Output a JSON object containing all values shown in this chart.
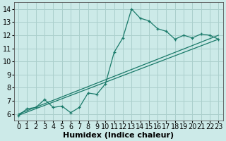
{
  "xlabel": "Humidex (Indice chaleur)",
  "bg_color": "#cceae8",
  "grid_color": "#aacfcc",
  "line_color": "#1a7a6a",
  "xlim": [
    -0.5,
    23.5
  ],
  "ylim": [
    5.5,
    14.5
  ],
  "xticks": [
    0,
    1,
    2,
    3,
    4,
    5,
    6,
    7,
    8,
    9,
    10,
    11,
    12,
    13,
    14,
    15,
    16,
    17,
    18,
    19,
    20,
    21,
    22,
    23
  ],
  "yticks": [
    6,
    7,
    8,
    9,
    10,
    11,
    12,
    13,
    14
  ],
  "line1_x": [
    0,
    1,
    2,
    3,
    4,
    5,
    6,
    7,
    8,
    9,
    10,
    11,
    12,
    13,
    14,
    15,
    16,
    17,
    18,
    19,
    20,
    21,
    22,
    23
  ],
  "line1_y": [
    5.9,
    6.4,
    6.5,
    7.1,
    6.5,
    6.6,
    6.1,
    6.5,
    7.6,
    7.5,
    8.3,
    10.7,
    11.8,
    14.0,
    13.3,
    13.1,
    12.5,
    12.3,
    11.7,
    12.0,
    11.8,
    12.1,
    12.0,
    11.7
  ],
  "line2_x": [
    0,
    23
  ],
  "line2_y": [
    6.0,
    12.0
  ],
  "line3_x": [
    0,
    23
  ],
  "line3_y": [
    5.9,
    11.7
  ],
  "xlabel_fontsize": 8,
  "tick_fontsize": 7
}
